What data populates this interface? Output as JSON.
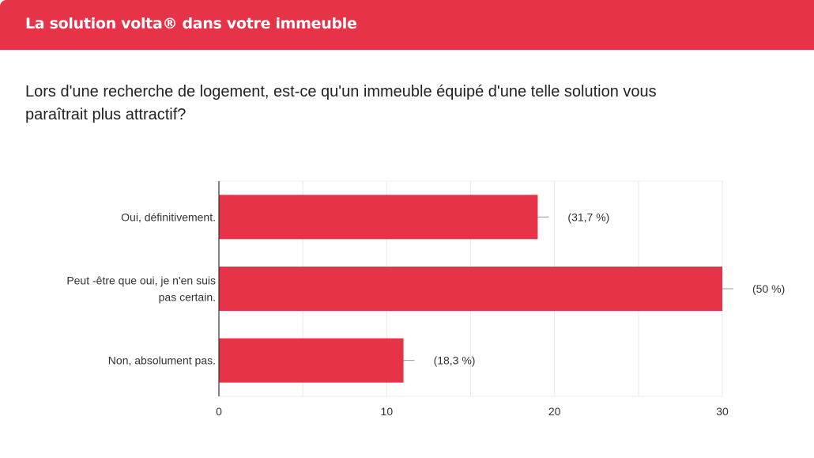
{
  "header": {
    "title": "La solution volta® dans votre immeuble"
  },
  "question": "Lors d'une recherche de logement, est-ce qu'un immeuble équipé d'une telle solution vous paraîtrait plus attractif?",
  "colors": {
    "accent": "#e63347",
    "bar": "#e63347"
  },
  "chart_data": {
    "type": "bar",
    "orientation": "horizontal",
    "categories": [
      [
        "Oui, définitivement."
      ],
      [
        "Peut -être que oui, je n'en suis",
        "pas certain."
      ],
      [
        "Non, absolument pas."
      ]
    ],
    "values": [
      19,
      30,
      11
    ],
    "data_labels": [
      "(31,7 %)",
      "(50 %)",
      "(18,3 %)"
    ],
    "xlim": [
      0,
      30
    ],
    "x_ticks": [
      0,
      10,
      20,
      30
    ],
    "gridlines": [
      0,
      5,
      10,
      15,
      20,
      25,
      30
    ],
    "grid": true,
    "legend": "none"
  }
}
